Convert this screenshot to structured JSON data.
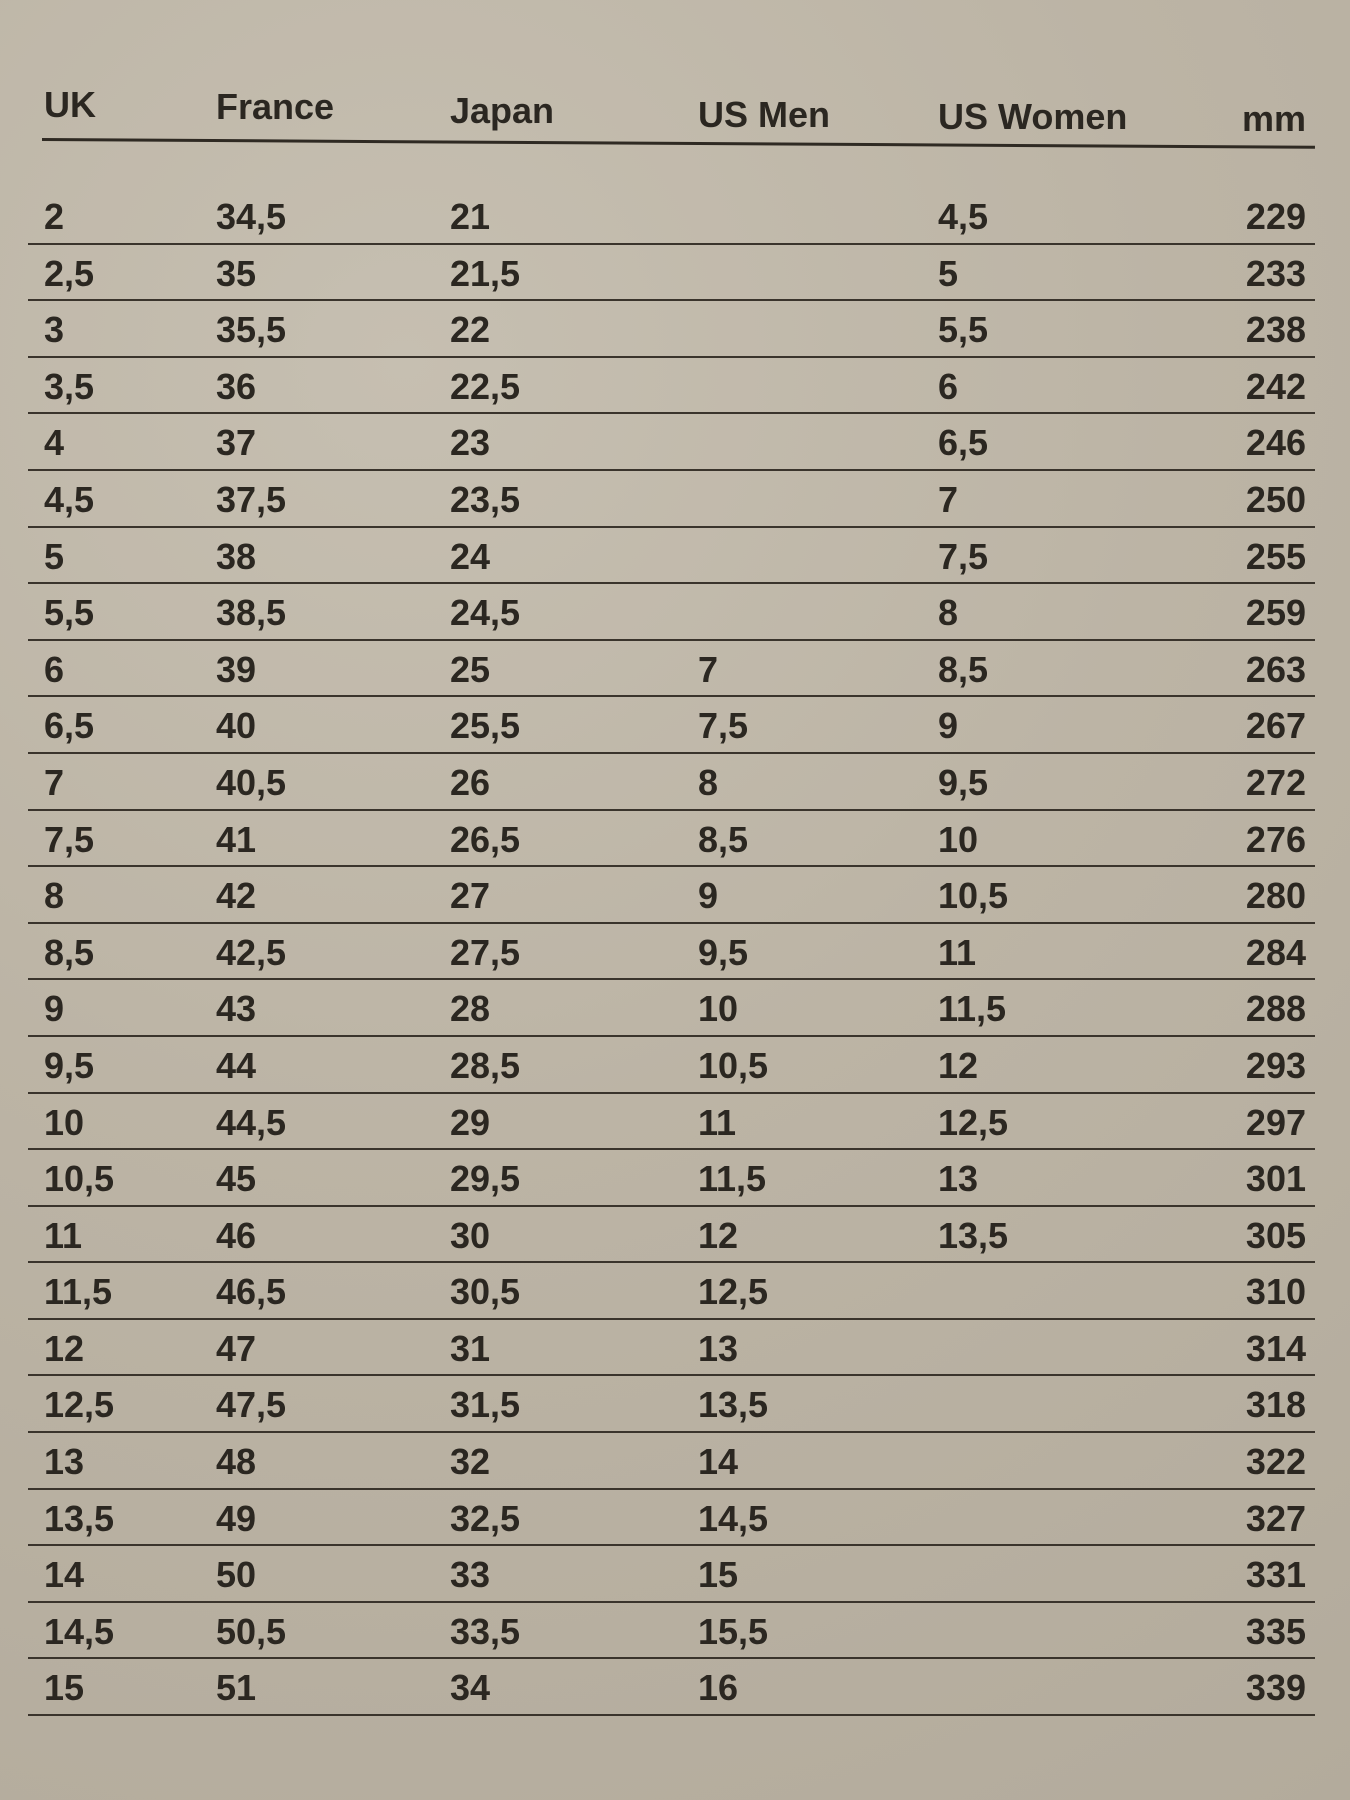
{
  "colors": {
    "paper": "#bcb4a5",
    "ink": "#2b2721"
  },
  "headers": [
    "UK",
    "France",
    "Japan",
    "US Men",
    "US Women",
    "mm"
  ],
  "rows": [
    [
      "2",
      "34,5",
      "21",
      "",
      "4,5",
      "229"
    ],
    [
      "2,5",
      "35",
      "21,5",
      "",
      "5",
      "233"
    ],
    [
      "3",
      "35,5",
      "22",
      "",
      "5,5",
      "238"
    ],
    [
      "3,5",
      "36",
      "22,5",
      "",
      "6",
      "242"
    ],
    [
      "4",
      "37",
      "23",
      "",
      "6,5",
      "246"
    ],
    [
      "4,5",
      "37,5",
      "23,5",
      "",
      "7",
      "250"
    ],
    [
      "5",
      "38",
      "24",
      "",
      "7,5",
      "255"
    ],
    [
      "5,5",
      "38,5",
      "24,5",
      "",
      "8",
      "259"
    ],
    [
      "6",
      "39",
      "25",
      "7",
      "8,5",
      "263"
    ],
    [
      "6,5",
      "40",
      "25,5",
      "7,5",
      "9",
      "267"
    ],
    [
      "7",
      "40,5",
      "26",
      "8",
      "9,5",
      "272"
    ],
    [
      "7,5",
      "41",
      "26,5",
      "8,5",
      "10",
      "276"
    ],
    [
      "8",
      "42",
      "27",
      "9",
      "10,5",
      "280"
    ],
    [
      "8,5",
      "42,5",
      "27,5",
      "9,5",
      "11",
      "284"
    ],
    [
      "9",
      "43",
      "28",
      "10",
      "11,5",
      "288"
    ],
    [
      "9,5",
      "44",
      "28,5",
      "10,5",
      "12",
      "293"
    ],
    [
      "10",
      "44,5",
      "29",
      "11",
      "12,5",
      "297"
    ],
    [
      "10,5",
      "45",
      "29,5",
      "11,5",
      "13",
      "301"
    ],
    [
      "11",
      "46",
      "30",
      "12",
      "13,5",
      "305"
    ],
    [
      "11,5",
      "46,5",
      "30,5",
      "12,5",
      "",
      "310"
    ],
    [
      "12",
      "47",
      "31",
      "13",
      "",
      "314"
    ],
    [
      "12,5",
      "47,5",
      "31,5",
      "13,5",
      "",
      "318"
    ],
    [
      "13",
      "48",
      "32",
      "14",
      "",
      "322"
    ],
    [
      "13,5",
      "49",
      "32,5",
      "14,5",
      "",
      "327"
    ],
    [
      "14",
      "50",
      "33",
      "15",
      "",
      "331"
    ],
    [
      "14,5",
      "50,5",
      "33,5",
      "15,5",
      "",
      "335"
    ],
    [
      "15",
      "51",
      "34",
      "16",
      "",
      "339"
    ]
  ]
}
